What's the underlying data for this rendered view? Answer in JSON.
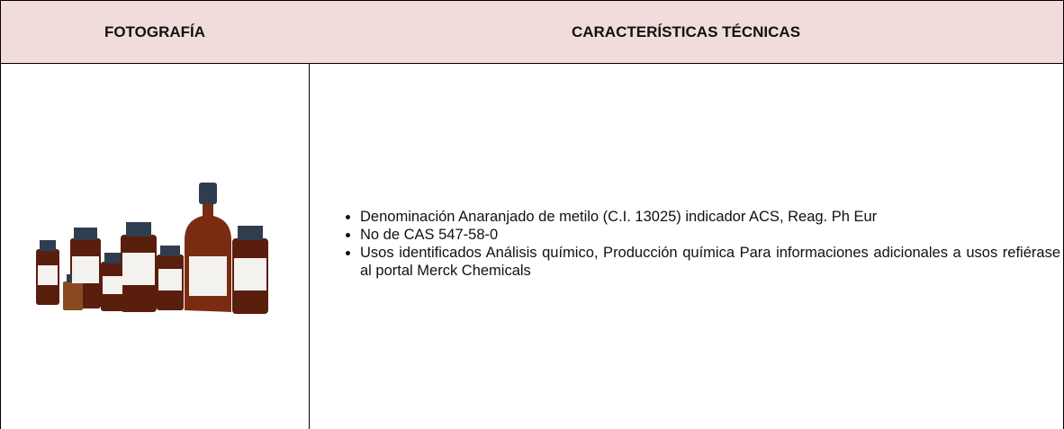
{
  "table": {
    "header": [
      "FOTOGRAFÍA",
      "CARACTERÍSTICAS TÉCNICAS"
    ],
    "rows": [
      {
        "items": [
          "Denominación Anaranjado de metilo (C.I. 13025) indicador ACS, Reag. Ph Eur",
          "No de CAS 547-58-0",
          "Usos identificados Análisis químico, Producción química Para informaciones adicionales a usos refiérase al portal Merck Chemicals"
        ]
      }
    ]
  }
}
